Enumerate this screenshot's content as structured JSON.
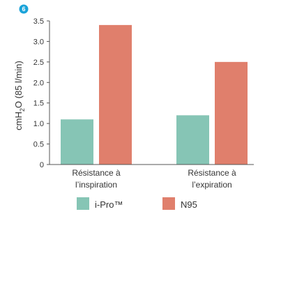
{
  "badge": {
    "number": "6",
    "color": "#1aa3d9"
  },
  "chart_data": {
    "type": "bar",
    "categories": [
      [
        "Résistance à",
        "l’inspiration"
      ],
      [
        "Résistance à",
        "l’expiration"
      ]
    ],
    "series": [
      {
        "name": "i-Pro™",
        "color": "#86c5b5",
        "values": [
          1.1,
          1.2
        ]
      },
      {
        "name": "N95",
        "color": "#e07f6c",
        "values": [
          3.4,
          2.5
        ]
      }
    ],
    "ylabel": {
      "main": "cmH",
      "sub": "2",
      "rest": "O (85 l/min)"
    },
    "ylim": [
      0,
      3.5
    ],
    "yticks": [
      "0",
      "0.5",
      "1.0",
      "1.5",
      "2.0",
      "2.5",
      "3.0",
      "3.5"
    ],
    "ytick_values": [
      0,
      0.5,
      1.0,
      1.5,
      2.0,
      2.5,
      3.0,
      3.5
    ],
    "grid": false,
    "legend_position": "bottom"
  }
}
